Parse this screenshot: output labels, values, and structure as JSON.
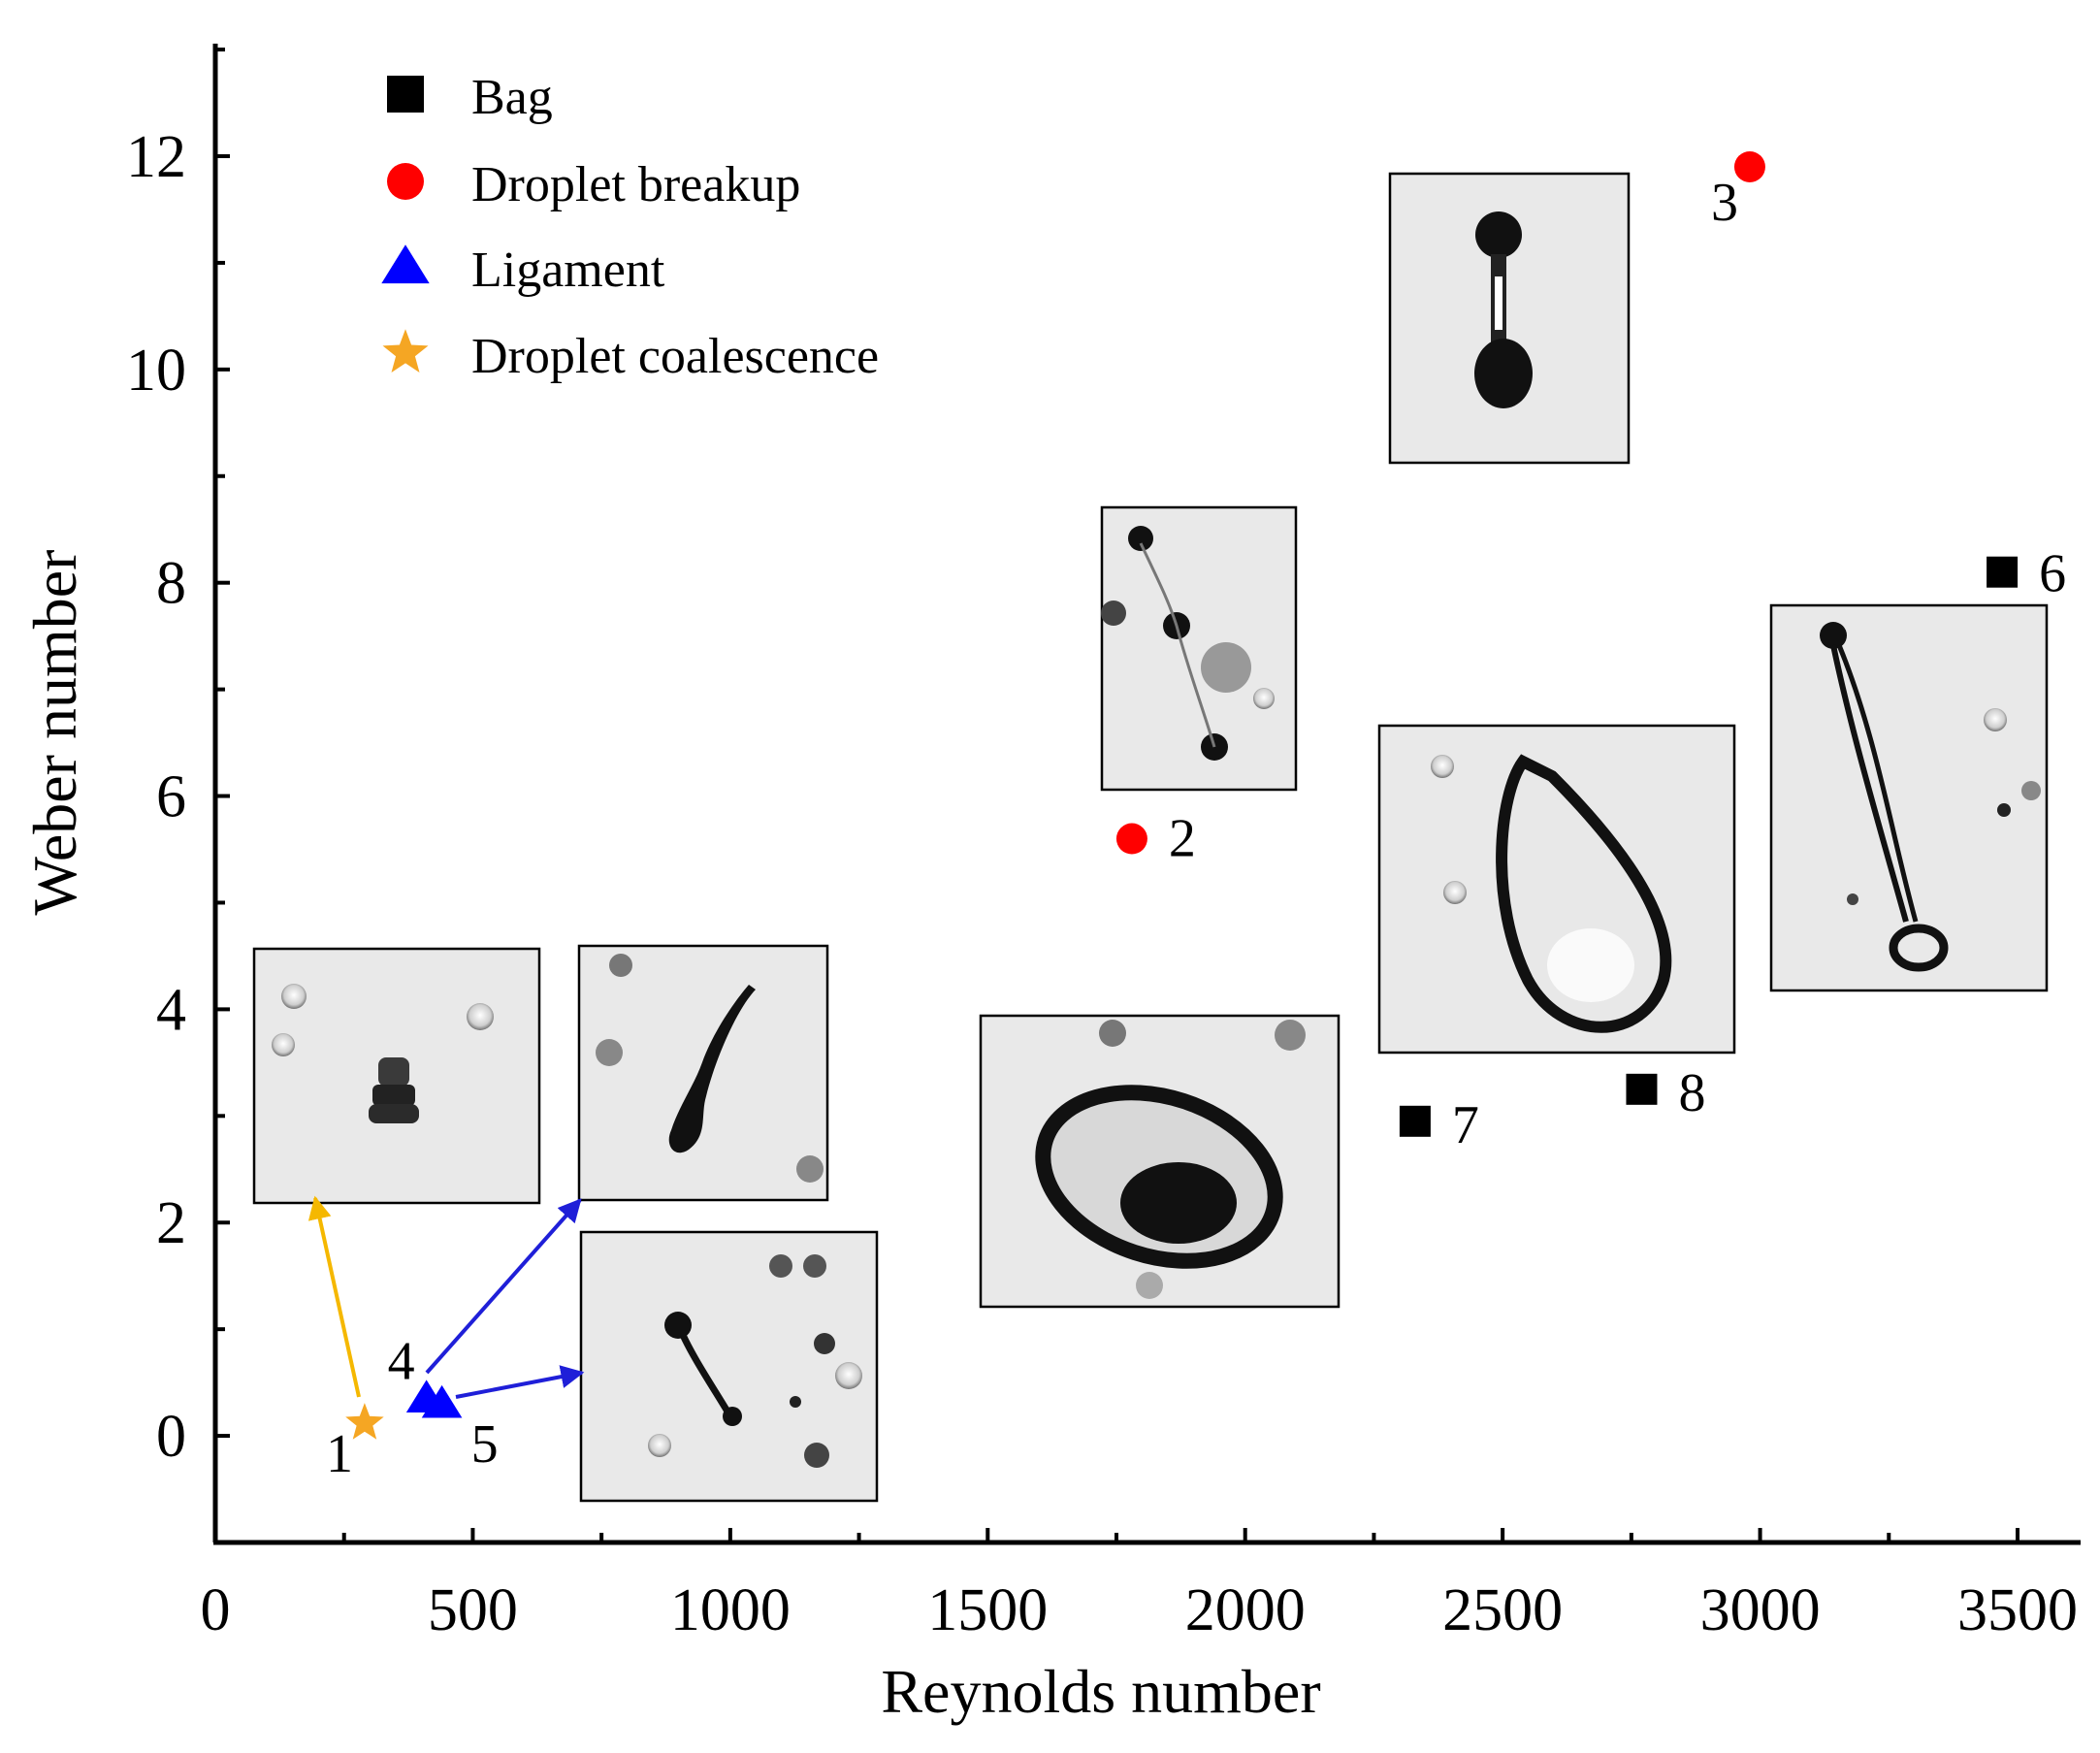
{
  "chart_data": {
    "type": "scatter",
    "title": "",
    "xlabel": "Reynolds number",
    "ylabel": "Weber number",
    "xlim": [
      0,
      3750
    ],
    "ylim": [
      -1,
      13
    ],
    "xticks": [
      0,
      500,
      1000,
      1500,
      2000,
      2500,
      3000,
      3500
    ],
    "yticks": [
      0,
      2,
      4,
      6,
      8,
      10,
      12
    ],
    "grid": false,
    "legend_position": "top-left",
    "colors": {
      "Bag": "#000000",
      "Droplet breakup": "#ff0000",
      "Ligament": "#0000ff",
      "Droplet coalescence": "#f5a623",
      "coalescence_arrow": "#f5b800",
      "ligament_arrow": "#1f1fd8"
    },
    "series": [
      {
        "name": "Bag",
        "marker": "square",
        "points": [
          {
            "x": 3470,
            "y": 8.1,
            "label": "6"
          },
          {
            "x": 2330,
            "y": 2.95,
            "label": "7"
          },
          {
            "x": 2770,
            "y": 3.25,
            "label": "8"
          }
        ]
      },
      {
        "name": "Droplet breakup",
        "marker": "circle",
        "points": [
          {
            "x": 1780,
            "y": 5.6,
            "label": "2"
          },
          {
            "x": 2980,
            "y": 11.9,
            "label": "3"
          }
        ]
      },
      {
        "name": "Ligament",
        "marker": "triangle",
        "points": [
          {
            "x": 410,
            "y": 0.35,
            "label": "4"
          },
          {
            "x": 440,
            "y": 0.3,
            "label": "5"
          }
        ]
      },
      {
        "name": "Droplet coalescence",
        "marker": "star",
        "points": [
          {
            "x": 290,
            "y": 0.12,
            "label": "1"
          }
        ]
      }
    ],
    "insets": [
      {
        "name": "coalescence-image",
        "depicts": "point 1"
      },
      {
        "name": "ligament-image-4",
        "depicts": "point 4"
      },
      {
        "name": "ligament-image-5",
        "depicts": "point 5"
      },
      {
        "name": "breakup-image-2",
        "depicts": "point 2"
      },
      {
        "name": "breakup-image-3",
        "depicts": "point 3"
      },
      {
        "name": "bag-image-6",
        "depicts": "point 6"
      },
      {
        "name": "bag-image-7",
        "depicts": "point 7"
      },
      {
        "name": "bag-image-8",
        "depicts": "point 8"
      }
    ]
  }
}
